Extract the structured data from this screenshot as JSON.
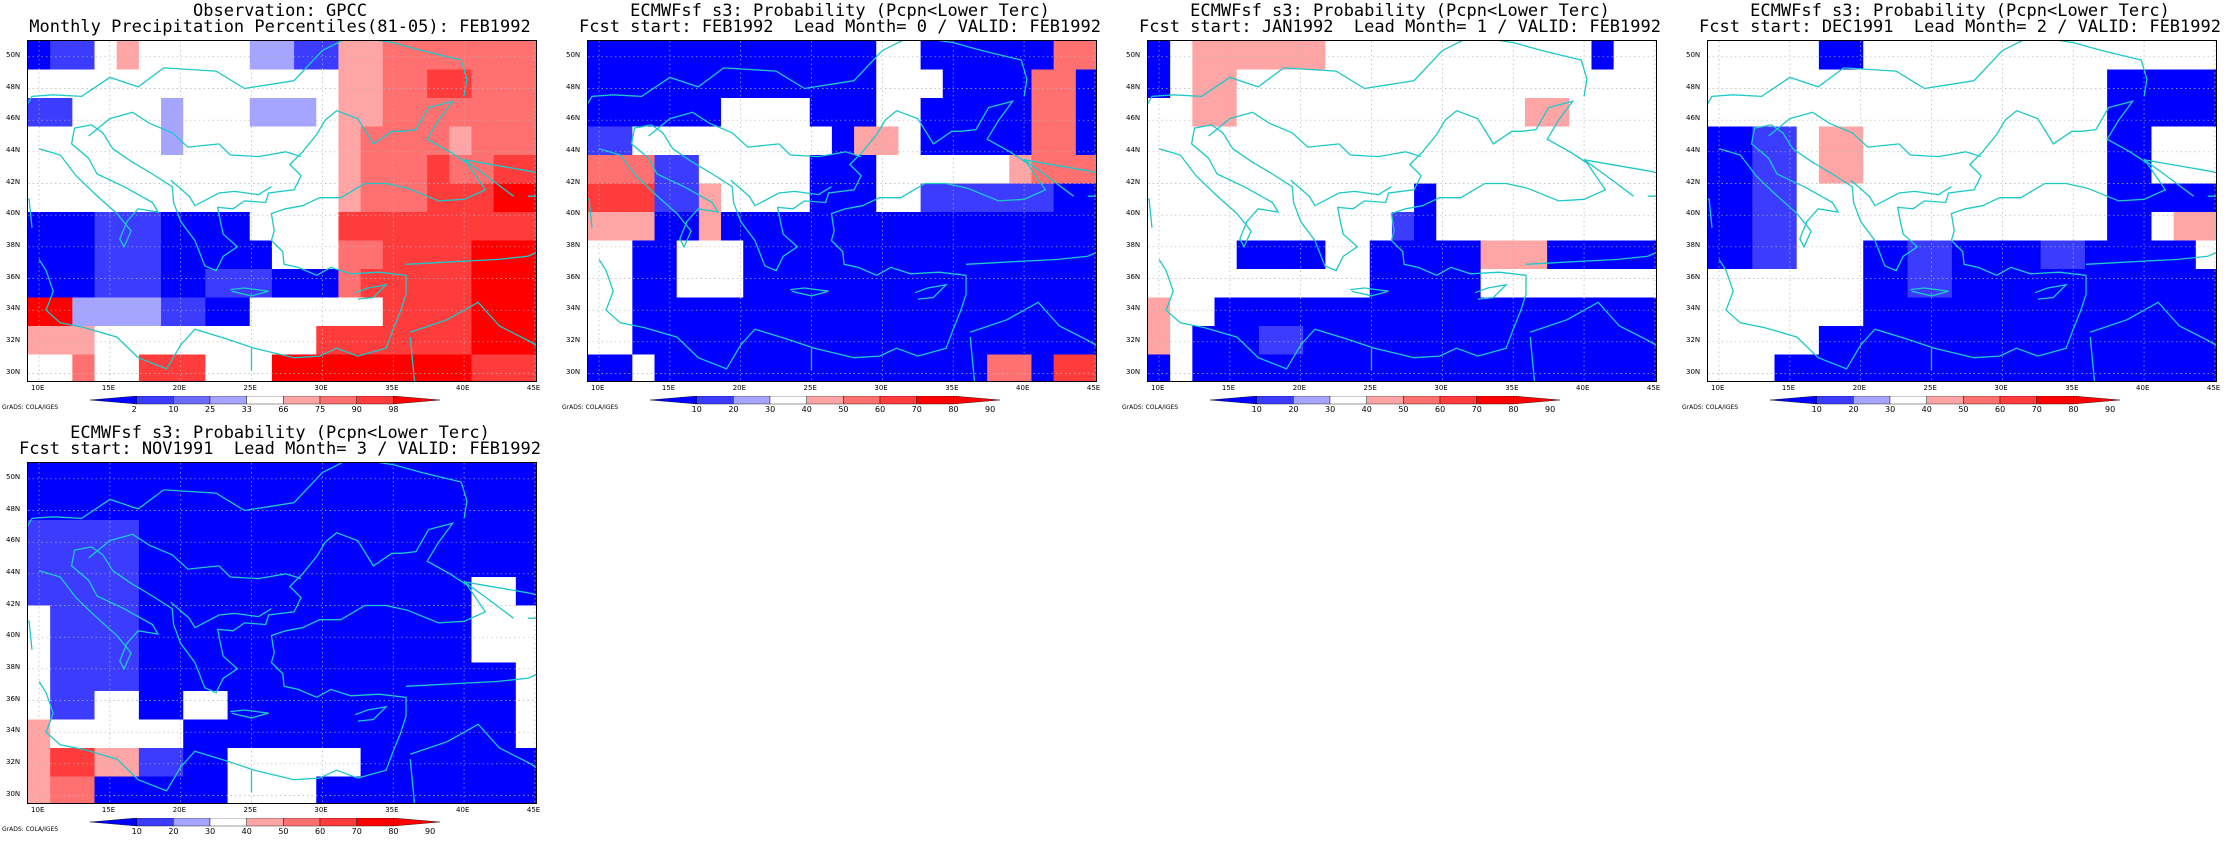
{
  "colors": {
    "d1": "#0000ff",
    "d2": "#3c3cff",
    "d3": "#6b6bff",
    "d4": "#a5a5ff",
    "w": "#ffffff",
    "r1": "#ffa5a5",
    "r2": "#ff7070",
    "r3": "#ff3c3c",
    "r4": "#ff0000",
    "coast": "#1ec8c8",
    "grid": "#b4b4b4"
  },
  "lat_labels": [
    "50N",
    "48N",
    "46N",
    "44N",
    "42N",
    "40N",
    "38N",
    "36N",
    "34N",
    "32N",
    "30N"
  ],
  "lon_labels": [
    "10E",
    "15E",
    "20E",
    "25E",
    "30E",
    "35E",
    "40E",
    "45E"
  ],
  "credit": "GrADS: COLA/IGES",
  "panels": [
    {
      "title1": "Observation: GPCC",
      "title2": "Monthly Precipitation Percentiles(81-05): FEB1992",
      "colorbar": {
        "labels": [
          "2",
          "10",
          "25",
          "33",
          "66",
          "75",
          "90",
          "98"
        ],
        "colors": [
          "d1",
          "d2",
          "d3",
          "d4",
          "w",
          "r1",
          "r2",
          "r3",
          "r4"
        ]
      },
      "grid": [
        "d1,d2,d2,w,r1,w,w,w,w,w,d4,d4,d2,d2,r1,r1,r2,r2,r2,r2,r2,r2,r2",
        "w,w,w,w,w,w,w,w,w,w,w,w,w,w,r1,r1,r2,r2,r3,r3,r2,r2,r2",
        "d2,d2,w,w,w,w,d4,w,w,w,d4,d4,d4,w,r1,r1,r2,r2,r2,r2,r2,r2,r2",
        "w,w,w,w,w,w,d4,w,w,w,w,w,w,w,r1,r2,r2,r2,r2,r1,r2,r2,r2",
        "w,w,w,w,w,w,w,w,w,w,w,w,w,w,r1,r2,r2,r2,r3,r2,r2,r3,r3",
        "w,w,w,w,w,w,w,w,w,w,w,w,w,w,r1,r2,r2,r2,r3,r3,r3,r4,r4",
        "d1,d1,d1,d2,d2,d2,d1,d1,d1,d1,w,w,w,w,r3,r3,r3,r3,r3,r3,r3,r3,r3",
        "d1,d1,d1,d2,d2,d2,d1,d1,d1,d1,d1,w,w,w,r2,r2,r3,r3,r3,r3,r4,r4,r4",
        "d1,d1,d1,d2,d2,d2,d1,d1,d2,d2,d2,d1,d1,d1,r2,r3,r3,r3,r3,r3,r4,r4,r4",
        "r4,r4,d4,d4,d4,d4,d2,d2,d1,d1,w,w,w,w,w,w,r3,r3,r3,r3,r4,r4,r4",
        "r1,r1,r1,w,w,w,w,w,w,w,w,w,w,r3,r3,r3,r3,r3,r3,r3,r4,r4,r4",
        "w,w,r2,w,w,r3,r3,r3,w,w,w,r4,r4,r4,r4,r4,r4,r4,r4,r4,r3,r3,r3"
      ]
    },
    {
      "title1": "ECMWFsf s3: Probability (Pcpn<Lower Terc)",
      "title2": "Fcst start: FEB1992  Lead Month= 0 / VALID: FEB1992",
      "colorbar": {
        "labels": [
          "10",
          "20",
          "30",
          "40",
          "50",
          "60",
          "70",
          "80",
          "90"
        ],
        "colors": [
          "d1",
          "d2",
          "d4",
          "w",
          "r1",
          "r2",
          "r3",
          "r4",
          "r4"
        ]
      },
      "grid": [
        "d1,d1,d1,d1,d1,d1,d1,d1,d1,d1,d1,d1,d1,w,w,d1,d1,d1,d1,d1,d1,r2,r2",
        "d1,d1,d1,d1,d1,d1,d1,d1,d1,d1,d1,d1,d1,w,w,w,d1,d1,d1,d1,r2,r2,d1",
        "d1,d1,d1,d1,d1,d1,w,w,w,w,d1,d1,d1,w,w,d1,d1,d1,d1,d1,r2,r2,d1",
        "d2,d2,w,w,w,w,w,w,w,w,w,d1,r1,r1,w,d1,d1,d1,d1,d1,r2,r2,d1",
        "r2,r2,r2,d2,d2,w,w,w,w,w,d1,d1,d1,w,w,w,w,w,w,r1,r2,r2,r2",
        "r3,r3,r3,d2,d2,r1,w,w,w,w,d1,d1,d1,w,w,d2,d2,d2,d2,d2,d2,d1,d1",
        "r1,r1,r1,d1,d1,r1,d1,d1,d1,d1,d1,d1,d1,d1,d1,d1,d1,d1,d1,d1,d1,d1,d1",
        "w,w,d1,d1,w,w,w,d1,d1,d1,d1,d1,d1,d1,d1,d1,d1,d1,d1,d1,d1,d1,d1",
        "w,w,d1,d1,w,w,w,d1,d1,d1,d1,d1,d1,d1,d1,d1,d1,d1,d1,d1,d1,d1,d1",
        "w,w,d1,d1,d1,d1,d1,d1,d1,d1,d1,d1,d1,d1,d1,d1,d1,d1,d1,d1,d1,d1,d1",
        "w,w,d1,d1,d1,d1,d1,d1,d1,d1,d1,d1,d1,d1,d1,d1,d1,d1,d1,d1,d1,d1,d1",
        "d1,d1,w,d1,d1,d1,d1,d1,d1,d1,d1,d1,d1,d1,d1,d1,d1,d1,r2,r2,d1,r3,r3"
      ]
    },
    {
      "title1": "ECMWFsf s3: Probability (Pcpn<Lower Terc)",
      "title2": "Fcst start: JAN1992  Lead Month= 1 / VALID: FEB1992",
      "colorbar": {
        "labels": [
          "10",
          "20",
          "30",
          "40",
          "50",
          "60",
          "70",
          "80",
          "90"
        ],
        "colors": [
          "d1",
          "d2",
          "d4",
          "w",
          "r1",
          "r2",
          "r3",
          "r4",
          "r4"
        ]
      },
      "grid": [
        "d1,w,r1,r1,r1,r1,r1,r1,w,w,w,w,w,w,w,w,w,w,w,w,d1,w,w",
        "d1,w,r1,r1,w,w,w,w,w,w,w,w,w,w,w,w,w,w,w,w,w,w,w",
        "w,w,r1,r1,w,w,w,w,w,w,w,w,w,w,w,w,w,r1,r1,w,w,w,w",
        "w,w,w,w,w,w,w,w,w,w,w,w,w,w,w,w,w,w,w,w,w,w,w",
        "w,w,w,w,w,w,w,w,w,w,w,w,w,w,w,w,w,w,w,w,w,w,w",
        "w,w,w,w,w,w,w,w,w,w,w,w,d1,w,w,w,w,w,w,w,w,w,w",
        "w,w,w,w,w,w,w,w,w,w,w,d2,d1,w,w,w,w,w,w,w,w,w,w",
        "w,w,w,w,d1,d1,d1,d1,w,w,d1,d1,d1,d1,d1,r1,r1,r1,d1,d1,d1,d1,d1",
        "w,w,w,w,w,w,w,w,w,w,d1,d1,d1,d1,d1,w,w,w,w,w,w,w,w",
        "r1,w,w,d1,d1,d1,d1,d1,d1,d1,d1,d1,d1,d1,d1,d1,d1,d1,d1,d1,d1,d1,d1",
        "r1,w,d1,d1,d1,d2,d2,d1,d1,d1,d1,d1,d1,d1,d1,d1,d1,d1,d1,d1,d1,d1,d1",
        "d1,w,d1,d1,d1,d1,d1,d1,d1,d1,d1,d1,d1,d1,d1,d1,d1,d1,d1,d1,d1,d1,d1"
      ]
    },
    {
      "title1": "ECMWFsf s3: Probability (Pcpn<Lower Terc)",
      "title2": "Fcst start: DEC1991  Lead Month= 2 / VALID: FEB1992",
      "colorbar": {
        "labels": [
          "10",
          "20",
          "30",
          "40",
          "50",
          "60",
          "70",
          "80",
          "90"
        ],
        "colors": [
          "d1",
          "d2",
          "d4",
          "w",
          "r1",
          "r2",
          "r3",
          "r4",
          "r4"
        ]
      },
      "grid": [
        "w,w,w,w,w,d1,d1,w,w,w,w,w,w,w,w,w,w,w,w,w,w,w,w",
        "w,w,w,w,w,w,w,w,w,w,w,w,w,w,w,w,w,w,d1,d1,d1,d1,d1",
        "w,w,w,w,w,w,w,w,w,w,w,w,w,w,w,w,w,w,d1,d1,d1,d1,d1",
        "d1,d1,d2,d2,w,r1,r1,w,w,w,w,w,w,w,w,w,w,w,d1,d1,w,w,w",
        "d1,d1,d2,d2,w,r1,r1,w,w,w,w,w,w,w,w,w,w,w,d1,d1,w,w,w",
        "d1,d1,d2,d2,w,w,w,w,w,w,w,w,w,w,w,w,w,w,d1,d1,d1,d1,d1",
        "d1,d1,d2,d2,w,w,w,w,w,w,w,w,w,w,w,w,w,w,d1,d1,w,r1,r1",
        "d1,d1,d2,d2,w,w,w,d1,d1,d2,d2,d1,d1,d1,d1,d2,d2,d1,d1,d1,d1,d1,w",
        "w,w,w,w,w,w,w,d1,d1,d2,d2,d1,d1,d1,d1,d1,d1,d1,d1,d1,d1,d1,d1",
        "w,w,w,w,w,w,w,d1,d1,d1,d1,d1,d1,d1,d1,d1,d1,d1,d1,d1,d1,d1,d1",
        "w,w,w,w,w,d1,d1,d1,d1,d1,d1,d1,d1,d1,d1,d1,d1,d1,d1,d1,d1,d1,d1",
        "w,w,w,d1,d1,d1,d1,d1,d1,d1,d1,d1,d1,d1,d1,d1,d1,d1,d1,d1,d1,d1,d1"
      ]
    },
    {
      "title1": "ECMWFsf s3: Probability (Pcpn<Lower Terc)",
      "title2": "Fcst start: NOV1991  Lead Month= 3 / VALID: FEB1992",
      "colorbar": {
        "labels": [
          "10",
          "20",
          "30",
          "40",
          "50",
          "60",
          "70",
          "80",
          "90"
        ],
        "colors": [
          "d1",
          "d2",
          "d4",
          "w",
          "r1",
          "r2",
          "r3",
          "r4",
          "r4"
        ]
      },
      "grid": [
        "d1,d1,d1,d1,d1,d1,d1,d1,d1,d1,d1,d1,d1,d1,d1,d1,d1,d1,d1,d1,d1,d1,d1",
        "d1,d1,d1,d1,d1,d1,d1,d1,d1,d1,d1,d1,d1,d1,d1,d1,d1,d1,d1,d1,d1,d1,d1",
        "d2,d2,d2,d2,d2,d1,d1,d1,d1,d1,d1,d1,d1,d1,d1,d1,d1,d1,d1,d1,d1,d1,d1",
        "d2,d2,d2,d2,d2,d1,d1,d1,d1,d1,d1,d1,d1,d1,d1,d1,d1,d1,d1,d1,d1,d1,d1",
        "d2,d2,d2,d2,d2,d1,d1,d1,d1,d1,d1,d1,d1,d1,d1,d1,d1,d1,d1,d1,w,w,d1",
        "w,d2,d2,d2,d2,d1,d1,d1,d1,d1,d1,d1,d1,d1,d1,d1,d1,d1,d1,d1,w,w,w",
        "w,d2,d2,d2,d2,d1,d1,d1,d1,d1,d1,d1,d1,d1,d1,d1,d1,d1,d1,d1,w,w,w",
        "w,d2,d2,d2,d2,d1,d1,d1,d1,d1,d1,d1,d1,d1,d1,d1,d1,d1,d1,d1,d1,d1,w",
        "w,d2,d2,w,w,d1,d1,w,w,d1,d1,d1,d1,d1,d1,d1,d1,d1,d1,d1,d1,d1,w",
        "r1,w,w,w,w,w,w,d1,d1,d1,d1,d1,d1,d1,d1,d1,d1,d1,d1,d1,d1,d1,w",
        "r1,r3,r3,r1,r1,d2,d2,d1,d1,w,w,w,w,w,w,d1,d1,d1,d1,d1,d1,d1,d1",
        "r1,r2,r2,d1,d1,d1,d1,d1,d1,w,w,w,w,d1,d1,d1,d1,d1,d1,d1,d1,d1,d1"
      ]
    }
  ]
}
